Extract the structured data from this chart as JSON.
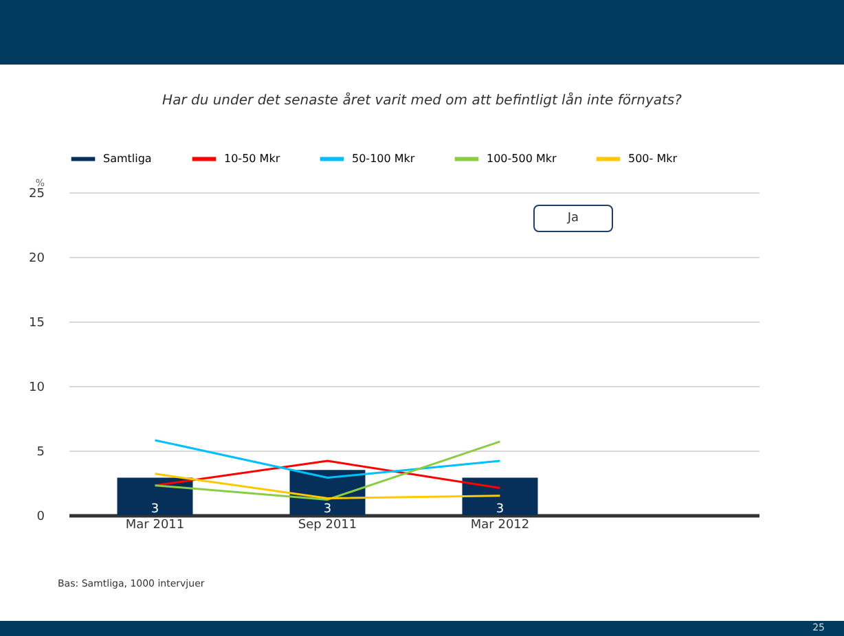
{
  "chart_data": {
    "type": "bar",
    "title": "Har du under det senaste året varit med om att befintligt lån inte förnyats?",
    "ylabel": "%",
    "categories": [
      "Mar 2011",
      "Sep 2011",
      "Mar 2012",
      null
    ],
    "series": [
      {
        "name": "Samtliga",
        "color": "#06305a",
        "values": [
          2.9,
          3.5,
          2.9,
          null
        ],
        "value_labels": [
          "3",
          "3",
          "3",
          null
        ]
      },
      {
        "name": "10-50 Mkr",
        "type": "line",
        "color": "#ff0000",
        "values": [
          2.3,
          4.2,
          2.1,
          null
        ]
      },
      {
        "name": "50-100 Mkr",
        "type": "line",
        "color": "#00c0ff",
        "values": [
          5.8,
          2.9,
          4.2,
          null
        ]
      },
      {
        "name": "100-500 Mkr",
        "type": "line",
        "color": "#8ccc44",
        "values": [
          2.3,
          1.2,
          5.7,
          null
        ]
      },
      {
        "name": "500- Mkr",
        "type": "line",
        "color": "#ffc800",
        "values": [
          3.2,
          1.3,
          1.5,
          null
        ]
      }
    ],
    "ylim": [
      0,
      25
    ],
    "yticks": [
      0,
      5,
      10,
      15,
      20,
      25
    ],
    "grid": "y",
    "legend": "top",
    "line_style": "solid",
    "annotations": [
      "Ja",
      "Bas: Samtliga, 1000 intervjuer",
      "25"
    ]
  }
}
